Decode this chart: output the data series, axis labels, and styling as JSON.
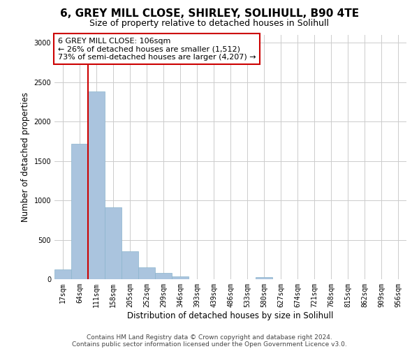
{
  "title": "6, GREY MILL CLOSE, SHIRLEY, SOLIHULL, B90 4TE",
  "subtitle": "Size of property relative to detached houses in Solihull",
  "xlabel": "Distribution of detached houses by size in Solihull",
  "ylabel": "Number of detached properties",
  "bin_labels": [
    "17sqm",
    "64sqm",
    "111sqm",
    "158sqm",
    "205sqm",
    "252sqm",
    "299sqm",
    "346sqm",
    "393sqm",
    "439sqm",
    "486sqm",
    "533sqm",
    "580sqm",
    "627sqm",
    "674sqm",
    "721sqm",
    "768sqm",
    "815sqm",
    "862sqm",
    "909sqm",
    "956sqm"
  ],
  "bar_values": [
    120,
    1720,
    2380,
    910,
    350,
    150,
    80,
    35,
    0,
    0,
    0,
    0,
    25,
    0,
    0,
    0,
    0,
    0,
    0,
    0,
    0
  ],
  "bar_color": "#aac4de",
  "bar_edge_color": "#8ab4cc",
  "vline_x_index": 1.5,
  "vline_color": "#cc0000",
  "annotation_text": "6 GREY MILL CLOSE: 106sqm\n← 26% of detached houses are smaller (1,512)\n73% of semi-detached houses are larger (4,207) →",
  "annotation_box_color": "#ffffff",
  "annotation_box_edge_color": "#cc0000",
  "ylim": [
    0,
    3100
  ],
  "yticks": [
    0,
    500,
    1000,
    1500,
    2000,
    2500,
    3000
  ],
  "footer_line1": "Contains HM Land Registry data © Crown copyright and database right 2024.",
  "footer_line2": "Contains public sector information licensed under the Open Government Licence v3.0.",
  "background_color": "#ffffff",
  "grid_color": "#cccccc",
  "title_fontsize": 11,
  "subtitle_fontsize": 9,
  "axis_label_fontsize": 8.5,
  "tick_fontsize": 7,
  "annotation_fontsize": 8,
  "footer_fontsize": 6.5
}
